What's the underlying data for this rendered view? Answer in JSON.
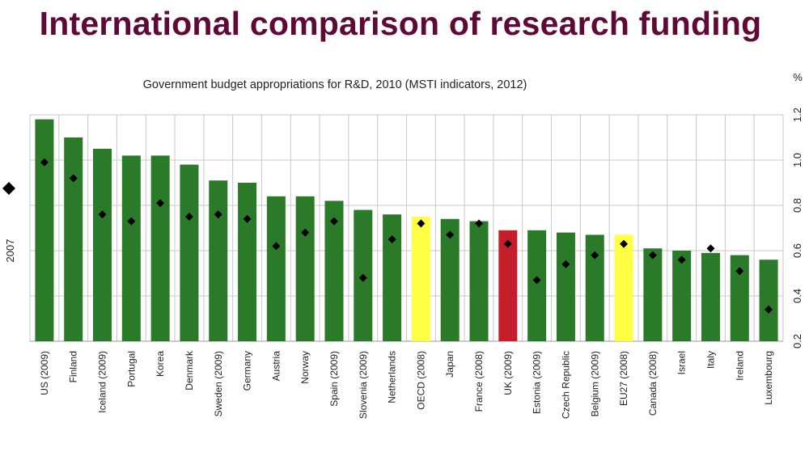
{
  "slide": {
    "title": "International comparison of research funding"
  },
  "chart_data": {
    "type": "bar",
    "title": "Government budget appropriations for R&D, 2010 (MSTI indicators, 2012)",
    "xlabel": "",
    "ylabel": "%",
    "ylim": [
      0.2,
      1.2
    ],
    "yticks": [
      "0.2",
      "0.4",
      "0.6",
      "0.8",
      "1.0",
      "1.2"
    ],
    "grid": true,
    "legend": "left",
    "legend_label": "2007",
    "colors": {
      "default": "#2a7a2a",
      "highlight_yellow": "#ffff44",
      "highlight_red": "#c41e2a",
      "marker": "#000000",
      "grid": "#c8c8c8"
    },
    "categories": [
      "US (2009)",
      "Finland",
      "Iceland (2009)",
      "Portugal",
      "Korea",
      "Denmark",
      "Sweden (2009)",
      "Germany",
      "Austria",
      "Norway",
      "Spain (2009)",
      "Slovenia (2009)",
      "Netherlands",
      "OECD (2008)",
      "Japan",
      "France (2008)",
      "UK (2009)",
      "Estonia (2009)",
      "Czech Republic",
      "Belgium (2009)",
      "EU27 (2008)",
      "Canada (2008)",
      "Israel",
      "Italy",
      "Ireland",
      "Luxembourg"
    ],
    "series": [
      {
        "values": [
          1.18,
          1.1,
          1.05,
          1.02,
          1.02,
          0.98,
          0.91,
          0.9,
          0.84,
          0.84,
          0.82,
          0.78,
          0.76,
          0.75,
          0.74,
          0.73,
          0.69,
          0.69,
          0.68,
          0.67,
          0.67,
          0.61,
          0.6,
          0.59,
          0.58,
          0.56
        ],
        "bar_colors": [
          "default",
          "default",
          "default",
          "default",
          "default",
          "default",
          "default",
          "default",
          "default",
          "default",
          "default",
          "default",
          "default",
          "highlight_yellow",
          "default",
          "default",
          "highlight_red",
          "default",
          "default",
          "default",
          "highlight_yellow",
          "default",
          "default",
          "default",
          "default",
          "default"
        ]
      },
      {
        "name": "2007",
        "values": [
          0.99,
          0.92,
          0.76,
          0.73,
          0.81,
          0.75,
          0.76,
          0.74,
          0.62,
          0.68,
          0.73,
          0.48,
          0.65,
          0.72,
          0.67,
          0.72,
          0.63,
          0.47,
          0.54,
          0.58,
          0.63,
          0.58,
          0.56,
          0.61,
          0.51,
          0.34
        ]
      }
    ]
  }
}
